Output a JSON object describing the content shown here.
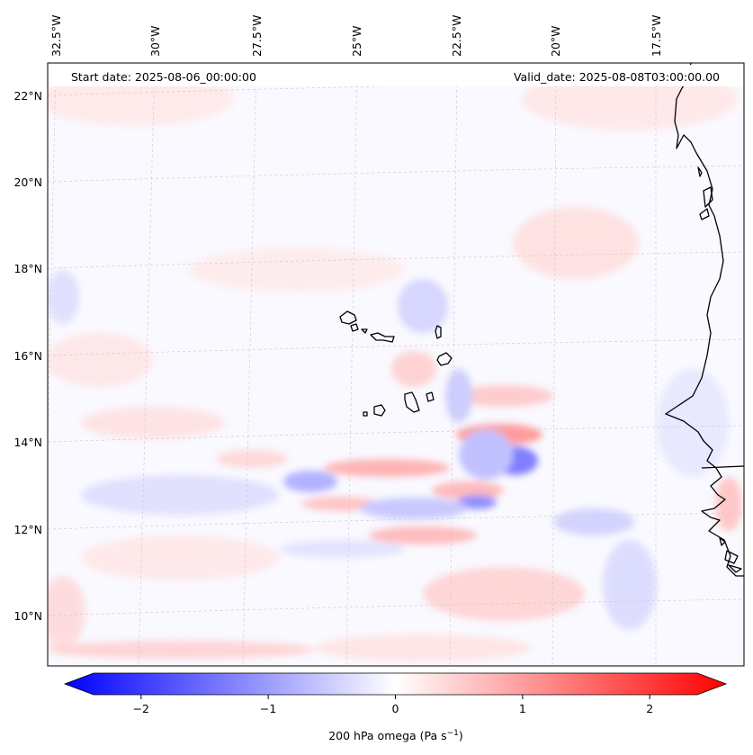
{
  "map": {
    "start_date_text": "Start date: 2025-08-06_00:00:00",
    "valid_date_text": "Valid_date: 2025-08-08T03:00:00.00",
    "lon_labels": [
      "32.5°W",
      "30°W",
      "27.5°W",
      "25°W",
      "22.5°W",
      "20°W",
      "17.5°W"
    ],
    "lat_labels": [
      "22°N",
      "20°N",
      "18°N",
      "16°N",
      "14°N",
      "12°N",
      "10°N"
    ],
    "field": "200 hPa omega"
  },
  "colorbar": {
    "ticks": [
      "−2",
      "−1",
      "0",
      "1",
      "2"
    ],
    "tick_values": [
      -2,
      -1,
      0,
      1,
      2
    ],
    "range": [
      -2.6,
      2.6
    ],
    "label_main": "200 hPa omega (Pa s",
    "label_exp": "−1",
    "label_close": ")",
    "colors": {
      "negative": "#0000ff",
      "zero": "#ffffff",
      "positive": "#ff0000"
    }
  },
  "colors": {
    "coastline": "#000000",
    "gridline": "#c8c8c8"
  }
}
